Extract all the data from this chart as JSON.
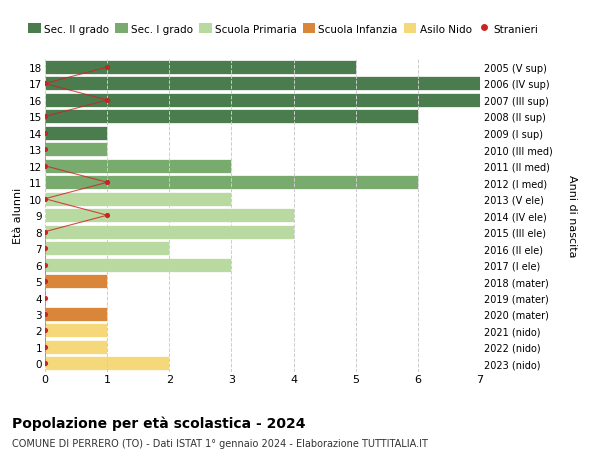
{
  "ages": [
    18,
    17,
    16,
    15,
    14,
    13,
    12,
    11,
    10,
    9,
    8,
    7,
    6,
    5,
    4,
    3,
    2,
    1,
    0
  ],
  "right_labels": [
    "2005 (V sup)",
    "2006 (IV sup)",
    "2007 (III sup)",
    "2008 (II sup)",
    "2009 (I sup)",
    "2010 (III med)",
    "2011 (II med)",
    "2012 (I med)",
    "2013 (V ele)",
    "2014 (IV ele)",
    "2015 (III ele)",
    "2016 (II ele)",
    "2017 (I ele)",
    "2018 (mater)",
    "2019 (mater)",
    "2020 (mater)",
    "2021 (nido)",
    "2022 (nido)",
    "2023 (nido)"
  ],
  "bar_values": [
    5,
    7,
    7,
    6,
    1,
    1,
    3,
    6,
    3,
    4,
    4,
    2,
    3,
    1,
    0,
    1,
    1,
    1,
    2
  ],
  "bar_colors": [
    "#4a7c4e",
    "#4a7c4e",
    "#4a7c4e",
    "#4a7c4e",
    "#4a7c4e",
    "#7aab6e",
    "#7aab6e",
    "#7aab6e",
    "#b8d9a0",
    "#b8d9a0",
    "#b8d9a0",
    "#b8d9a0",
    "#b8d9a0",
    "#d9853a",
    "#d9853a",
    "#d9853a",
    "#f5d87a",
    "#f5d87a",
    "#f5d87a"
  ],
  "stranieri_x": [
    1,
    0,
    1,
    0,
    0,
    0,
    0,
    1,
    0,
    1,
    0,
    0,
    0,
    0,
    0,
    0,
    0,
    0,
    0
  ],
  "legend_labels": [
    "Sec. II grado",
    "Sec. I grado",
    "Scuola Primaria",
    "Scuola Infanzia",
    "Asilo Nido",
    "Stranieri"
  ],
  "legend_colors": [
    "#4a7c4e",
    "#7aab6e",
    "#b8d9a0",
    "#d9853a",
    "#f5d87a",
    "#cc2222"
  ],
  "title": "Popolazione per età scolastica - 2024",
  "subtitle": "COMUNE DI PERRERO (TO) - Dati ISTAT 1° gennaio 2024 - Elaborazione TUTTITALIA.IT",
  "ylabel_left": "Età alunni",
  "ylabel_right": "Anni di nascita",
  "xlim": [
    0,
    7
  ],
  "ylim_min": -0.5,
  "ylim_max": 18.5,
  "bg_color": "#ffffff",
  "bar_height": 0.85,
  "grid_color": "#cccccc",
  "grid_style": "--"
}
